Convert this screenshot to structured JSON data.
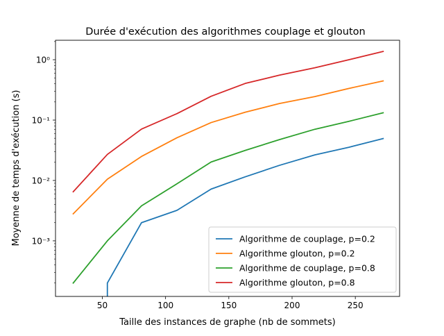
{
  "chart_data": {
    "type": "line",
    "title": "Durée d'exécution des algorithmes couplage et glouton",
    "xlabel": "Taille des instances de graphe (nb de sommets)",
    "ylabel": "Moyenne de temps d'exécution (s)",
    "xscale": "linear",
    "yscale": "log",
    "xlim": [
      13,
      285
    ],
    "ylim": [
      0.00012,
      2.1
    ],
    "xticks": [
      50,
      100,
      150,
      200,
      250
    ],
    "xtick_labels": [
      "50",
      "100",
      "150",
      "200",
      "250"
    ],
    "yticks": [
      0.001,
      0.01,
      0.1,
      1
    ],
    "ytick_labels": [
      "10⁻³",
      "10⁻²",
      "10⁻¹",
      "10⁰"
    ],
    "grid": false,
    "legend_position": "lower-right",
    "series": [
      {
        "name": "Algorithme de couplage, p=0.2",
        "color": "#1f77b4",
        "x": [
          27,
          54,
          81,
          109,
          136,
          163,
          190,
          218,
          245,
          272
        ],
        "y": [
          null,
          0.0002,
          0.002,
          0.0032,
          0.0072,
          0.0115,
          0.0178,
          0.0265,
          0.0355,
          0.0495
        ]
      },
      {
        "name": "Algorithme glouton, p=0.2",
        "color": "#ff7f0e",
        "x": [
          27,
          54,
          81,
          109,
          136,
          163,
          190,
          218,
          245,
          272
        ],
        "y": [
          0.0028,
          0.0105,
          0.025,
          0.051,
          0.091,
          0.135,
          0.188,
          0.245,
          0.335,
          0.445
        ]
      },
      {
        "name": "Algorithme de couplage, p=0.8",
        "color": "#2ca02c",
        "x": [
          27,
          54,
          81,
          109,
          136,
          163,
          190,
          218,
          245,
          272
        ],
        "y": [
          0.0002,
          0.001,
          0.0038,
          0.0088,
          0.0202,
          0.0315,
          0.0475,
          0.0705,
          0.0955,
          0.132
        ]
      },
      {
        "name": "Algorithme glouton, p=0.8",
        "color": "#d62728",
        "x": [
          27,
          54,
          81,
          109,
          136,
          163,
          190,
          218,
          245,
          272
        ],
        "y": [
          0.0065,
          0.027,
          0.071,
          0.128,
          0.248,
          0.405,
          0.555,
          0.735,
          1.0,
          1.37
        ]
      }
    ]
  }
}
